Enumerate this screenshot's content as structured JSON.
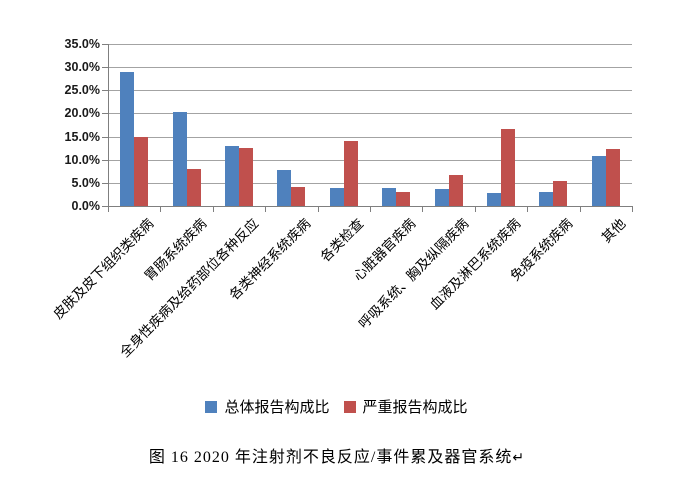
{
  "figure": {
    "caption": "图 16  2020 年注射剂不良反应/事件累及器官系统",
    "return_mark": "↵"
  },
  "colors": {
    "series_total": "#4F81BD",
    "series_serious": "#C0504D",
    "gridline": "#a3a3a3",
    "axis": "#7f7f7f"
  },
  "chart_data": {
    "type": "bar",
    "title": "",
    "xlabel": "",
    "ylabel": "",
    "ylim": [
      0,
      35
    ],
    "y_tick_step": 5,
    "y_tick_labels": [
      "35.0%",
      "30.0%",
      "25.0%",
      "20.0%",
      "15.0%",
      "10.0%",
      "5.0%",
      "0.0%"
    ],
    "grid": true,
    "legend_position": "bottom",
    "value_format": "percent",
    "categories": [
      "皮肤及皮下组织类疾病",
      "胃肠系统疾病",
      "全身性疾病及给药部位各种反应",
      "各类神经系统疾病",
      "各类检查",
      "心脏器官疾病",
      "呼吸系统、胸及纵隔疾病",
      "血液及淋巴系统疾病",
      "免疫系统疾病",
      "其他"
    ],
    "series": [
      {
        "name": "总体报告构成比",
        "color": "#4F81BD",
        "values": [
          28.9,
          20.3,
          13.0,
          7.7,
          3.9,
          3.8,
          3.7,
          2.9,
          3.0,
          10.8
        ]
      },
      {
        "name": "严重报告构成比",
        "color": "#C0504D",
        "values": [
          15.0,
          8.0,
          12.5,
          4.0,
          14.0,
          3.0,
          6.8,
          16.6,
          5.5,
          12.4
        ]
      }
    ]
  }
}
